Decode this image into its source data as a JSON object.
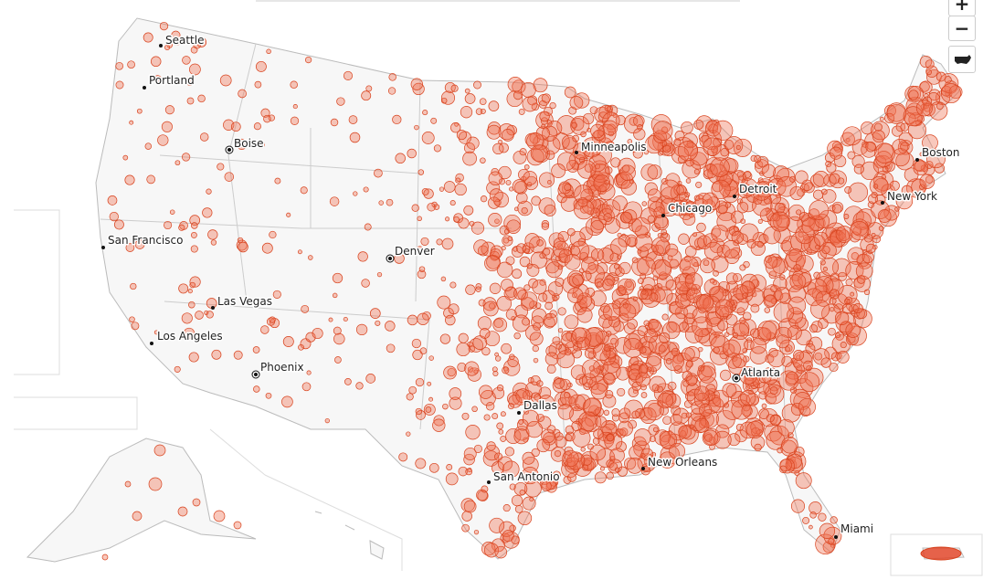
{
  "map": {
    "cities": [
      {
        "name": "Seattle"
      },
      {
        "name": "Portland"
      },
      {
        "name": "Boise"
      },
      {
        "name": "San Francisco"
      },
      {
        "name": "Las Vegas"
      },
      {
        "name": "Los Angeles"
      },
      {
        "name": "Phoenix"
      },
      {
        "name": "Denver"
      },
      {
        "name": "Minneapolis"
      },
      {
        "name": "Chicago"
      },
      {
        "name": "Detroit"
      },
      {
        "name": "Boston"
      },
      {
        "name": "New York"
      },
      {
        "name": "Atlanta"
      },
      {
        "name": "Dallas"
      },
      {
        "name": "San Antonio"
      },
      {
        "name": "New Orleans"
      },
      {
        "name": "Miami"
      }
    ]
  },
  "controls": {
    "zoom_in": "+",
    "zoom_out": "−"
  }
}
